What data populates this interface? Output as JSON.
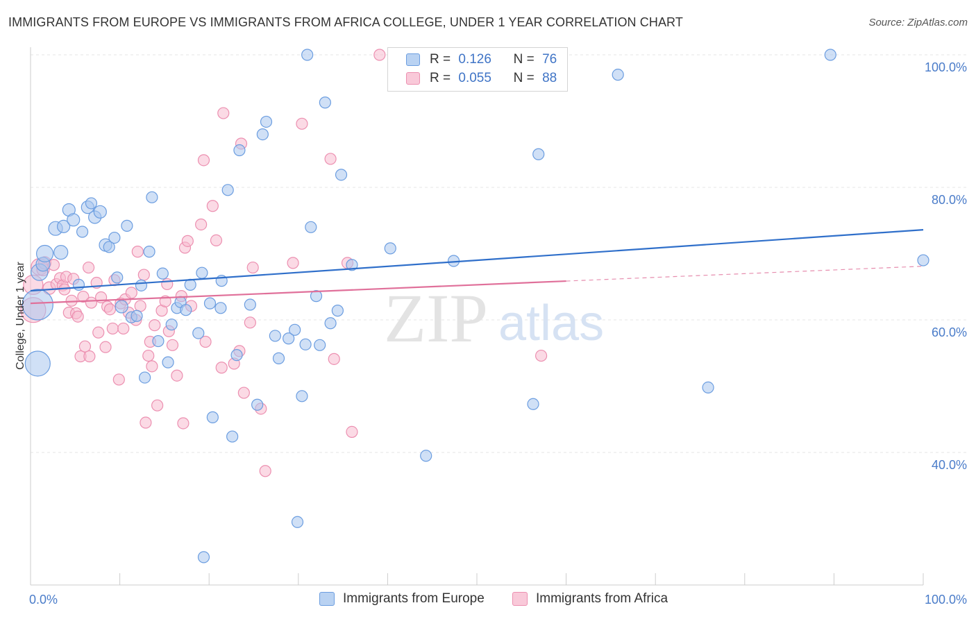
{
  "title": "IMMIGRANTS FROM EUROPE VS IMMIGRANTS FROM AFRICA COLLEGE, UNDER 1 YEAR CORRELATION CHART",
  "source": "Source: ZipAtlas.com",
  "watermark": {
    "zip": "ZIP",
    "atlas": "atlas"
  },
  "legend": {
    "europe": {
      "r_label": "R =",
      "r_value": "0.126",
      "n_label": "N =",
      "n_value": "76"
    },
    "africa": {
      "r_label": "R =",
      "r_value": "0.055",
      "n_label": "N =",
      "n_value": "88"
    }
  },
  "bottom_legend": {
    "europe": "Immigrants from Europe",
    "africa": "Immigrants from Africa"
  },
  "colors": {
    "europe_fill": "#a9c7ef",
    "europe_stroke": "#6b9de0",
    "europe_line": "#2f6fca",
    "africa_fill": "#f7bcd0",
    "africa_stroke": "#ec8fb0",
    "africa_line": "#e0709a",
    "tick_text": "#4a7cc9",
    "grid": "#e4e4e4"
  },
  "chart_data": {
    "type": "scatter",
    "title": "IMMIGRANTS FROM EUROPE VS IMMIGRANTS FROM AFRICA COLLEGE, UNDER 1 YEAR CORRELATION CHART",
    "xlabel": "",
    "ylabel": "College, Under 1 year",
    "xlim": [
      0,
      100
    ],
    "ylim": [
      20,
      102
    ],
    "x_tick_labels": [
      "0.0%",
      "100.0%"
    ],
    "y_ticks": [
      40,
      60,
      80,
      100
    ],
    "y_tick_labels": [
      "40.0%",
      "60.0%",
      "80.0%",
      "100.0%"
    ],
    "grid": true,
    "legend_position": "top-center",
    "series": [
      {
        "name": "Immigrants from Europe",
        "r": 0.126,
        "n": 76,
        "trend": {
          "x": [
            0,
            100
          ],
          "y": [
            64.4,
            73.6
          ],
          "dashed_from": null
        },
        "points": [
          [
            0.8,
            53.4,
            18
          ],
          [
            0.8,
            62.3,
            22
          ],
          [
            1.0,
            67.2,
            12
          ],
          [
            1.4,
            68.4,
            10
          ],
          [
            1.6,
            70.0,
            12
          ],
          [
            2.8,
            73.8,
            10
          ],
          [
            3.4,
            70.2,
            10
          ],
          [
            3.7,
            74.1,
            9
          ],
          [
            4.3,
            76.6,
            9
          ],
          [
            4.8,
            75.1,
            9
          ],
          [
            5.4,
            65.3,
            8
          ],
          [
            5.8,
            73.3,
            8
          ],
          [
            6.4,
            77.0,
            9
          ],
          [
            6.8,
            77.6,
            8
          ],
          [
            7.2,
            75.5,
            9
          ],
          [
            7.8,
            76.3,
            9
          ],
          [
            8.4,
            71.3,
            9
          ],
          [
            8.8,
            71.0,
            8
          ],
          [
            9.4,
            72.4,
            8
          ],
          [
            9.7,
            66.4,
            8
          ],
          [
            10.2,
            62.0,
            9
          ],
          [
            10.8,
            74.2,
            8
          ],
          [
            11.3,
            60.4,
            8
          ],
          [
            11.9,
            60.6,
            8
          ],
          [
            12.4,
            65.2,
            8
          ],
          [
            12.8,
            51.3,
            8
          ],
          [
            13.3,
            70.3,
            8
          ],
          [
            13.6,
            78.5,
            8
          ],
          [
            14.3,
            56.8,
            8
          ],
          [
            14.8,
            67.0,
            8
          ],
          [
            15.4,
            53.6,
            8
          ],
          [
            15.8,
            59.3,
            8
          ],
          [
            16.4,
            61.8,
            8
          ],
          [
            16.8,
            62.7,
            8
          ],
          [
            17.4,
            61.5,
            8
          ],
          [
            17.9,
            65.3,
            8
          ],
          [
            18.8,
            58.0,
            8
          ],
          [
            19.2,
            67.1,
            8
          ],
          [
            19.4,
            24.2,
            8
          ],
          [
            20.1,
            62.5,
            8
          ],
          [
            20.4,
            45.3,
            8
          ],
          [
            21.3,
            61.8,
            8
          ],
          [
            21.4,
            65.9,
            8
          ],
          [
            22.1,
            79.6,
            8
          ],
          [
            22.6,
            42.4,
            8
          ],
          [
            23.1,
            54.7,
            8
          ],
          [
            23.4,
            85.6,
            8
          ],
          [
            24.6,
            62.3,
            8
          ],
          [
            25.4,
            47.2,
            8
          ],
          [
            26.0,
            88.0,
            8
          ],
          [
            26.4,
            89.9,
            8
          ],
          [
            27.4,
            57.6,
            8
          ],
          [
            27.8,
            54.2,
            8
          ],
          [
            28.9,
            57.2,
            8
          ],
          [
            29.6,
            58.5,
            8
          ],
          [
            29.9,
            29.5,
            8
          ],
          [
            30.4,
            48.5,
            8
          ],
          [
            30.8,
            56.3,
            8
          ],
          [
            31.0,
            100.0,
            8
          ],
          [
            31.4,
            74.0,
            8
          ],
          [
            32.0,
            63.6,
            8
          ],
          [
            32.4,
            56.2,
            8
          ],
          [
            33.0,
            92.8,
            8
          ],
          [
            33.6,
            59.5,
            8
          ],
          [
            34.4,
            61.4,
            8
          ],
          [
            34.8,
            81.9,
            8
          ],
          [
            36.0,
            68.3,
            8
          ],
          [
            40.3,
            70.8,
            8
          ],
          [
            44.3,
            39.5,
            8
          ],
          [
            47.4,
            68.9,
            8
          ],
          [
            53.0,
            100.0,
            8
          ],
          [
            56.3,
            47.3,
            8
          ],
          [
            56.9,
            85.0,
            8
          ],
          [
            65.8,
            97.0,
            8
          ],
          [
            75.9,
            49.8,
            8
          ],
          [
            89.6,
            100.0,
            8
          ],
          [
            100.0,
            69.0,
            8
          ]
        ]
      },
      {
        "name": "Immigrants from Africa",
        "r": 0.055,
        "n": 88,
        "trend": {
          "x": [
            0,
            100
          ],
          "y": [
            62.5,
            68.1
          ],
          "dashed_from": 60
        },
        "points": [
          [
            0.3,
            61.5,
            18
          ],
          [
            0.3,
            65.3,
            14
          ],
          [
            1.0,
            68.0,
            12
          ],
          [
            1.4,
            67.6,
            9
          ],
          [
            1.6,
            68.6,
            9
          ],
          [
            2.1,
            64.8,
            9
          ],
          [
            2.6,
            68.3,
            8
          ],
          [
            2.9,
            65.4,
            8
          ],
          [
            3.3,
            66.3,
            8
          ],
          [
            3.6,
            65.2,
            8
          ],
          [
            3.8,
            64.6,
            8
          ],
          [
            4.0,
            66.5,
            8
          ],
          [
            4.3,
            61.1,
            8
          ],
          [
            4.6,
            62.9,
            8
          ],
          [
            4.8,
            66.2,
            8
          ],
          [
            5.1,
            61.0,
            8
          ],
          [
            5.3,
            60.5,
            8
          ],
          [
            5.6,
            54.5,
            8
          ],
          [
            5.9,
            63.5,
            8
          ],
          [
            6.1,
            56.0,
            8
          ],
          [
            6.5,
            67.9,
            8
          ],
          [
            6.6,
            54.5,
            8
          ],
          [
            6.8,
            62.6,
            8
          ],
          [
            7.4,
            65.6,
            8
          ],
          [
            7.6,
            58.1,
            8
          ],
          [
            7.9,
            63.4,
            8
          ],
          [
            8.4,
            55.9,
            8
          ],
          [
            8.6,
            62.0,
            8
          ],
          [
            8.9,
            61.6,
            8
          ],
          [
            9.2,
            58.7,
            8
          ],
          [
            9.4,
            66.0,
            8
          ],
          [
            9.9,
            51.0,
            8
          ],
          [
            10.1,
            62.5,
            8
          ],
          [
            10.4,
            58.7,
            8
          ],
          [
            10.6,
            63.1,
            8
          ],
          [
            11.0,
            61.1,
            8
          ],
          [
            11.3,
            64.1,
            8
          ],
          [
            11.8,
            60.0,
            8
          ],
          [
            12.0,
            70.3,
            8
          ],
          [
            12.3,
            62.1,
            8
          ],
          [
            12.7,
            66.8,
            8
          ],
          [
            12.9,
            44.5,
            8
          ],
          [
            13.2,
            54.6,
            8
          ],
          [
            13.4,
            56.7,
            8
          ],
          [
            13.6,
            53.0,
            8
          ],
          [
            13.9,
            59.2,
            8
          ],
          [
            14.2,
            47.1,
            8
          ],
          [
            14.7,
            61.4,
            8
          ],
          [
            15.1,
            62.8,
            8
          ],
          [
            15.3,
            65.4,
            8
          ],
          [
            15.5,
            58.3,
            8
          ],
          [
            15.9,
            56.2,
            8
          ],
          [
            16.4,
            51.6,
            8
          ],
          [
            16.9,
            63.6,
            8
          ],
          [
            17.1,
            44.4,
            8
          ],
          [
            17.3,
            70.9,
            8
          ],
          [
            17.6,
            71.9,
            8
          ],
          [
            18.0,
            62.1,
            8
          ],
          [
            19.1,
            74.4,
            8
          ],
          [
            19.4,
            84.1,
            8
          ],
          [
            19.6,
            56.7,
            8
          ],
          [
            20.4,
            77.2,
            8
          ],
          [
            20.8,
            72.0,
            8
          ],
          [
            21.4,
            52.8,
            8
          ],
          [
            21.6,
            91.2,
            8
          ],
          [
            22.8,
            53.4,
            8
          ],
          [
            23.4,
            55.3,
            8
          ],
          [
            23.6,
            86.6,
            8
          ],
          [
            23.9,
            49.0,
            8
          ],
          [
            24.6,
            59.6,
            8
          ],
          [
            24.9,
            67.9,
            8
          ],
          [
            25.8,
            46.6,
            8
          ],
          [
            26.3,
            37.2,
            8
          ],
          [
            29.4,
            68.6,
            8
          ],
          [
            30.4,
            89.6,
            8
          ],
          [
            33.6,
            84.3,
            8
          ],
          [
            34.0,
            54.1,
            8
          ],
          [
            35.5,
            68.6,
            8
          ],
          [
            36.0,
            43.1,
            8
          ],
          [
            39.1,
            100.0,
            8
          ],
          [
            57.2,
            54.6,
            8
          ]
        ]
      }
    ]
  }
}
